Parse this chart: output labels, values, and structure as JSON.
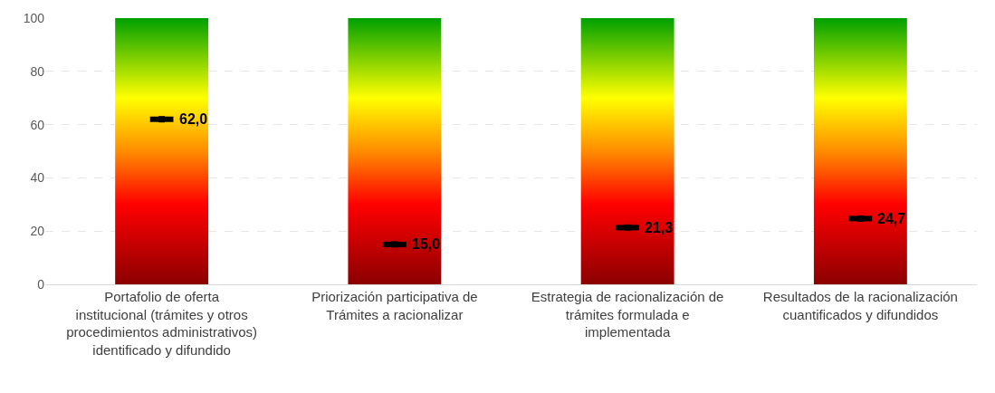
{
  "chart_data": {
    "type": "bar",
    "categories": [
      "Portafolio de oferta institucional (trámites y otros procedimientos administrativos) identificado y difundido",
      "Priorización participativa de Trámites a racionalizar",
      "Estrategia de racionalización de trámites formulada e implementada",
      "Resultados de la racionalización cuantificados y difundidos"
    ],
    "series": [
      {
        "type": "bar",
        "color": "#ffff00",
        "values": [
          100,
          100,
          100,
          100
        ]
      },
      {
        "type": "scatter",
        "color": "#000000",
        "values": [
          62.0,
          15.0,
          21.3,
          24.7
        ],
        "value_labels": [
          "62,0",
          "15,0",
          "21,3",
          "24,7"
        ]
      }
    ],
    "ylim": [
      0,
      100
    ],
    "yticks": [
      0,
      20,
      40,
      60,
      80,
      100
    ],
    "grid": "y"
  }
}
